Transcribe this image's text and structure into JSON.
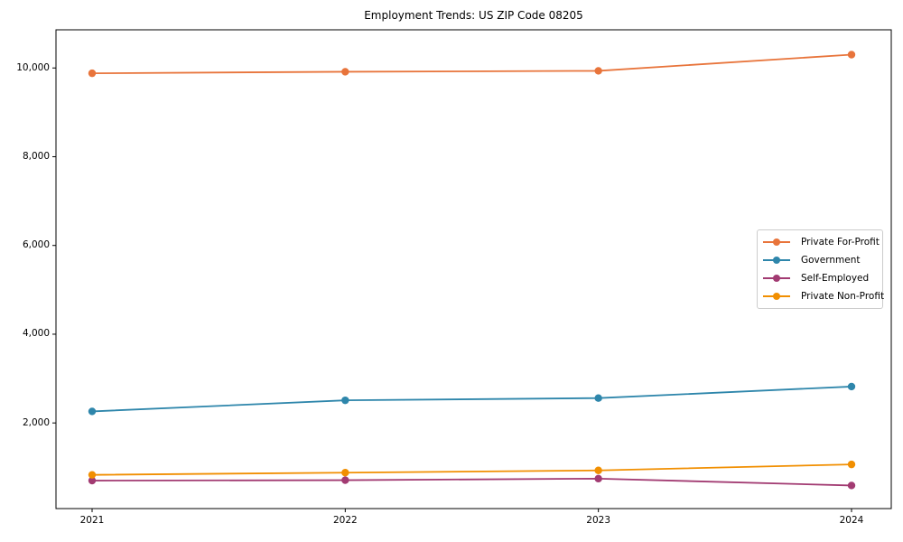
{
  "chart_data": {
    "type": "line",
    "title": "Employment Trends: US ZIP Code 08205",
    "x": [
      "2021",
      "2022",
      "2023",
      "2024"
    ],
    "series": [
      {
        "name": "Private For-Profit",
        "color": "#E8743B",
        "values": [
          9880,
          9915,
          9935,
          10300
        ]
      },
      {
        "name": "Government",
        "color": "#2E86AB",
        "values": [
          2260,
          2510,
          2560,
          2820
        ]
      },
      {
        "name": "Self-Employed",
        "color": "#A23B72",
        "values": [
          700,
          710,
          745,
          590
        ]
      },
      {
        "name": "Private Non-Profit",
        "color": "#F18F01",
        "values": [
          830,
          880,
          930,
          1065
        ]
      }
    ],
    "xlabel": "",
    "ylabel": "",
    "yticks": [
      2000,
      4000,
      6000,
      8000,
      10000
    ],
    "ytick_labels": [
      "2,000",
      "4,000",
      "6,000",
      "8,000",
      "10,000"
    ],
    "ylim": [
      70,
      10860
    ],
    "grid": false,
    "legend_position": "center right",
    "axis_color": "#000000",
    "legend_border_color": "#cccccc"
  }
}
